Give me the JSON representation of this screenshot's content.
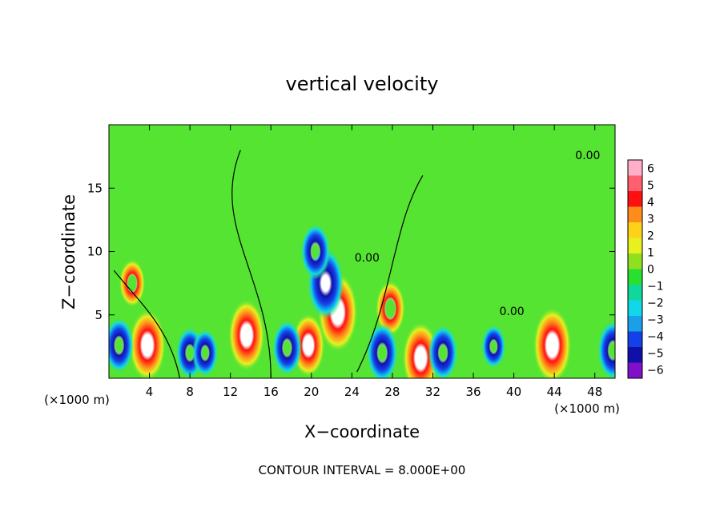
{
  "chart_data": {
    "type": "heatmap",
    "title": "vertical velocity",
    "xlabel": "X−coordinate",
    "ylabel": "Z−coordinate",
    "x_unit": "(×1000 m)",
    "y_unit": "(×1000 m)",
    "xlim": [
      0,
      50
    ],
    "ylim": [
      0,
      20
    ],
    "x_ticks": [
      4,
      8,
      12,
      16,
      20,
      24,
      28,
      32,
      36,
      40,
      44,
      48
    ],
    "y_ticks": [
      5,
      10,
      15
    ],
    "colorbar": {
      "range": [
        -6,
        6
      ],
      "labels": [
        "6",
        "5",
        "4",
        "3",
        "2",
        "1",
        "0",
        "−1",
        "−2",
        "−3",
        "−4",
        "−5",
        "−6"
      ],
      "colors": [
        "#ffb0c8",
        "#ff6070",
        "#ff1010",
        "#ff8c1a",
        "#ffd21a",
        "#e8f020",
        "#90e020",
        "#28e030",
        "#10d89a",
        "#10d8e8",
        "#1aa0e8",
        "#1440e8",
        "#1010a8",
        "#8010c8"
      ]
    },
    "contour_label": "0.00",
    "annotation": "CONTOUR INTERVAL = 8.000E+00",
    "features": [
      {
        "x": 3.8,
        "z": 2.6,
        "w": 5.0
      },
      {
        "x": 8.0,
        "z": 2.0,
        "w": -2.5
      },
      {
        "x": 13.6,
        "z": 3.4,
        "w": 5.0
      },
      {
        "x": 9.5,
        "z": 2.0,
        "w": -2.0
      },
      {
        "x": 19.7,
        "z": 2.6,
        "w": 4.0
      },
      {
        "x": 22.6,
        "z": 5.2,
        "w": 6.0
      },
      {
        "x": 21.4,
        "z": 7.5,
        "w": -5.0
      },
      {
        "x": 20.4,
        "z": 10.0,
        "w": -3.0
      },
      {
        "x": 17.6,
        "z": 2.4,
        "w": -3.0
      },
      {
        "x": 27.8,
        "z": 5.5,
        "w": 3.0
      },
      {
        "x": 27.0,
        "z": 2.0,
        "w": -3.5
      },
      {
        "x": 30.8,
        "z": 1.6,
        "w": 5.0
      },
      {
        "x": 33.0,
        "z": 2.0,
        "w": -3.0
      },
      {
        "x": 38.0,
        "z": 2.5,
        "w": -1.5
      },
      {
        "x": 43.8,
        "z": 2.6,
        "w": 5.5
      },
      {
        "x": 49.8,
        "z": 2.2,
        "w": -3.5
      },
      {
        "x": 1.0,
        "z": 2.6,
        "w": -3.0
      },
      {
        "x": 2.3,
        "z": 7.5,
        "w": 2.0
      }
    ]
  }
}
